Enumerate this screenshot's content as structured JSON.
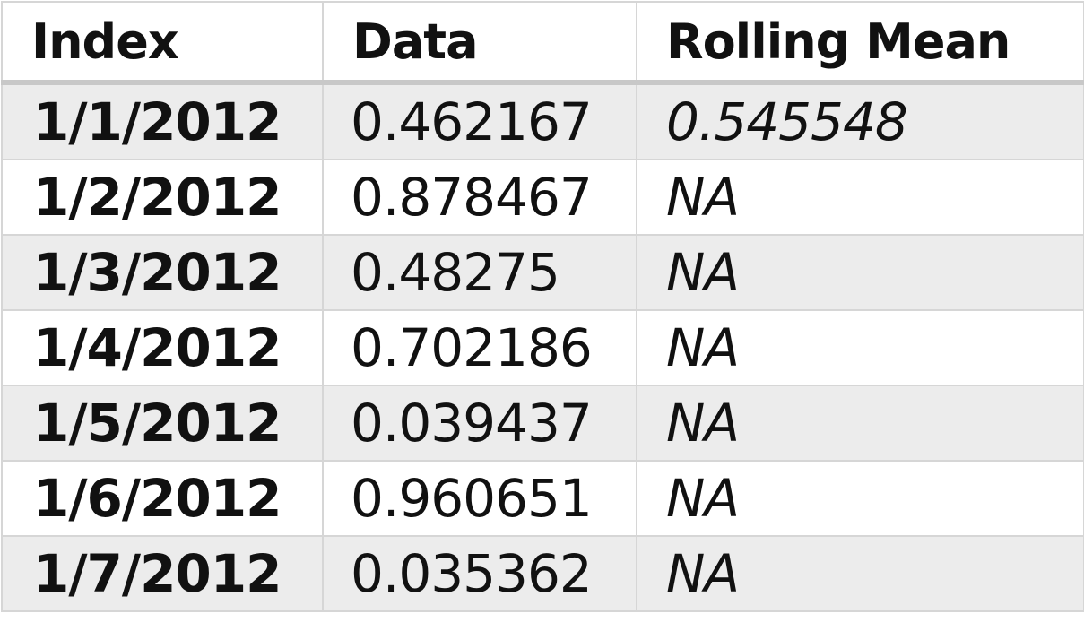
{
  "table": {
    "headers": [
      "Index",
      "Data",
      "Rolling Mean"
    ],
    "rows": [
      {
        "index": "1/1/2012",
        "data": "0.462167",
        "rolling_mean": "0.545548"
      },
      {
        "index": "1/2/2012",
        "data": "0.878467",
        "rolling_mean": "NA"
      },
      {
        "index": "1/3/2012",
        "data": "0.48275",
        "rolling_mean": "NA"
      },
      {
        "index": "1/4/2012",
        "data": "0.702186",
        "rolling_mean": "NA"
      },
      {
        "index": "1/5/2012",
        "data": "0.039437",
        "rolling_mean": "NA"
      },
      {
        "index": "1/6/2012",
        "data": "0.960651",
        "rolling_mean": "NA"
      },
      {
        "index": "1/7/2012",
        "data": "0.035362",
        "rolling_mean": "NA"
      }
    ]
  },
  "colors": {
    "stripe": "#ececec",
    "border": "#d6d6d6",
    "header_rule": "#c8c8c8",
    "text": "#111111"
  }
}
